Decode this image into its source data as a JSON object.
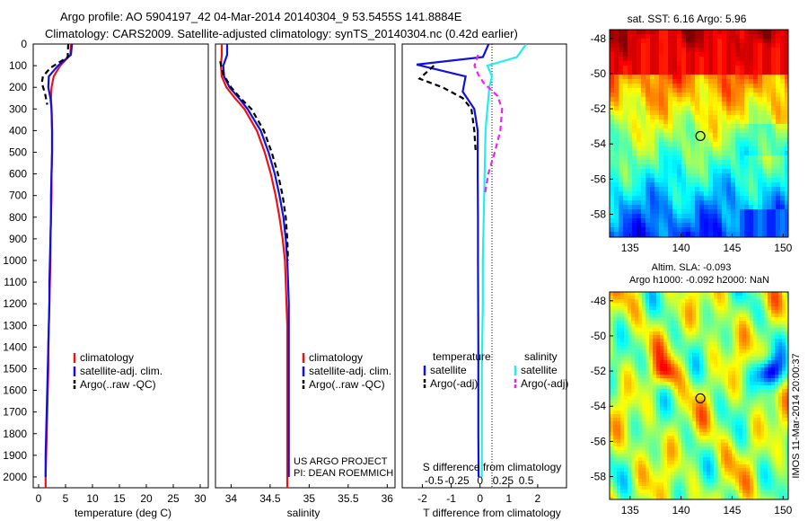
{
  "header": {
    "line1": "Argo profile: AO 5904197_42 04-Mar-2014 20140304_9 53.5455S 141.8884E",
    "line2": "Climatology: CARS2009. Satellite-adjusted climatology: synTS_20140304.nc (0.42d earlier)"
  },
  "footer": {
    "project": "US ARGO PROJECT",
    "pi": "PI: DEAN ROEMMICH",
    "imos": "IMOS 11-Mar-2014 20:00:37"
  },
  "colors": {
    "climatology": "#ee1111",
    "satellite": "#1111dd",
    "argo": "#000000",
    "satellite_salinity": "#22eeee",
    "argo_salinity_adj": "#ee22ee"
  },
  "chart_data": [
    {
      "type": "line",
      "panel": "temperature",
      "xlabel": "temperature (deg C)",
      "ylabel": "",
      "xlim": [
        -1,
        31.5
      ],
      "ylim": [
        2050,
        0
      ],
      "xticks": [
        "0",
        "5",
        "10",
        "15",
        "20",
        "25",
        "30"
      ],
      "yticks": [
        "0",
        "100",
        "200",
        "300",
        "400",
        "500",
        "600",
        "700",
        "800",
        "900",
        "1000",
        "1100",
        "1200",
        "1300",
        "1400",
        "1500",
        "1600",
        "1700",
        "1800",
        "1900",
        "2000"
      ],
      "legend": [
        "climatology",
        "satellite-adj. clim.",
        "Argo(..raw -QC)"
      ],
      "series": [
        {
          "name": "climatology",
          "x": [
            6.0,
            5.9,
            4.0,
            2.8,
            2.4,
            2.3,
            2.4,
            2.5,
            2.5,
            2.4,
            2.4,
            2.3,
            2.2,
            2.2,
            2.1,
            2.0,
            1.9,
            1.8,
            1.8,
            1.7,
            1.6,
            1.5,
            1.4,
            1.3,
            1.3
          ],
          "y": [
            0,
            50,
            100,
            150,
            200,
            250,
            300,
            400,
            500,
            600,
            700,
            800,
            900,
            1000,
            1100,
            1200,
            1300,
            1400,
            1500,
            1600,
            1700,
            1800,
            1900,
            2000,
            2050
          ]
        },
        {
          "name": "satellite-adj. clim.",
          "x": [
            6.2,
            6.0,
            3.6,
            1.9,
            1.8,
            2.2,
            2.4,
            2.5,
            2.5,
            2.4,
            2.3,
            2.3,
            2.2,
            2.1,
            2.0,
            2.0,
            1.9,
            1.8,
            1.7,
            1.6,
            1.5,
            1.4,
            1.3,
            1.3
          ],
          "y": [
            0,
            50,
            100,
            150,
            200,
            250,
            300,
            400,
            500,
            600,
            700,
            800,
            900,
            1000,
            1100,
            1200,
            1300,
            1400,
            1500,
            1600,
            1700,
            1800,
            1900,
            2000
          ]
        },
        {
          "name": "Argo(..raw -QC)",
          "x": [
            5.5,
            5.4,
            2.2,
            0.8,
            0.6,
            1.2,
            1.6
          ],
          "y": [
            0,
            60,
            110,
            150,
            180,
            230,
            280
          ]
        }
      ]
    },
    {
      "type": "line",
      "panel": "salinity",
      "xlabel": "salinity",
      "xlim": [
        33.8,
        36.1
      ],
      "ylim": [
        2050,
        0
      ],
      "xticks": [
        "34",
        "34.5",
        "35",
        "35.5",
        "36"
      ],
      "legend": [
        "climatology",
        "satellite-adj. clim.",
        "Argo(..raw -QC)"
      ],
      "series": [
        {
          "name": "climatology",
          "x": [
            33.88,
            33.88,
            33.87,
            33.88,
            33.94,
            34.05,
            34.17,
            34.33,
            34.43,
            34.51,
            34.57,
            34.62,
            34.66,
            34.69,
            34.7,
            34.71,
            34.72,
            34.72,
            34.72,
            34.72,
            34.72,
            34.72,
            34.72,
            34.72,
            34.72
          ],
          "y": [
            0,
            50,
            100,
            150,
            200,
            250,
            300,
            400,
            500,
            600,
            700,
            800,
            900,
            1000,
            1100,
            1200,
            1300,
            1400,
            1500,
            1600,
            1700,
            1800,
            1900,
            2000,
            2050
          ]
        },
        {
          "name": "satellite-adj. clim.",
          "x": [
            33.95,
            33.95,
            33.9,
            33.91,
            33.98,
            34.1,
            34.21,
            34.38,
            34.48,
            34.56,
            34.62,
            34.67,
            34.7,
            34.72,
            34.73,
            34.74,
            34.74,
            34.74,
            34.74,
            34.74,
            34.74,
            34.74,
            34.74,
            34.74
          ],
          "y": [
            0,
            50,
            100,
            150,
            200,
            250,
            300,
            400,
            500,
            600,
            700,
            800,
            900,
            1000,
            1100,
            1200,
            1300,
            1400,
            1500,
            1600,
            1700,
            1800,
            1900,
            2000
          ]
        },
        {
          "name": "Argo(..raw -QC)",
          "x": [
            33.86,
            33.9,
            34.0,
            34.12,
            34.26,
            34.42,
            34.52,
            34.6,
            34.66,
            34.7,
            34.72,
            34.73
          ],
          "y": [
            80,
            140,
            200,
            250,
            300,
            400,
            500,
            600,
            700,
            800,
            900,
            1000
          ]
        }
      ],
      "annotations": [
        "US ARGO PROJECT",
        "PI: DEAN ROEMMICH"
      ]
    },
    {
      "type": "line",
      "panel": "difference",
      "xlabel": "T difference from climatology",
      "top_label": "S difference from climatology",
      "xlim": [
        -2.7,
        3.0
      ],
      "ylim": [
        2050,
        0
      ],
      "xticks": [
        "-2",
        "-1",
        "0",
        "1",
        "2"
      ],
      "secondary_xticks": [
        "-0.5",
        "-0.25",
        "0",
        "0.25",
        "0.5"
      ],
      "legend": [
        "temperature",
        "satellite",
        "Argo(-adj)",
        "salinity",
        "satellite",
        "Argo(-adj)"
      ],
      "series": [
        {
          "name": "temperature satellite",
          "x": [
            0.3,
            0.1,
            -2.2,
            -0.5,
            -0.6,
            -0.2,
            -0.08,
            -0.08,
            -0.07,
            -0.07,
            -0.06,
            -0.06,
            -0.05
          ],
          "y": [
            0,
            60,
            95,
            150,
            220,
            300,
            400,
            600,
            800,
            1000,
            1400,
            1800,
            2000
          ]
        },
        {
          "name": "temperature Argo(-adj)",
          "x": [
            -1.6,
            -2.1,
            -1.3,
            -0.6,
            -0.3,
            -0.2,
            -0.15
          ],
          "y": [
            100,
            160,
            200,
            250,
            300,
            400,
            500
          ]
        },
        {
          "name": "salinity satellite",
          "x": [
            0.5,
            0.4,
            0.08,
            0.13,
            0.1,
            0.08,
            0.06,
            0.05,
            0.04,
            0.03,
            0.03,
            0.02,
            0.02,
            0.02
          ],
          "y": [
            0,
            60,
            100,
            150,
            200,
            300,
            400,
            600,
            800,
            1000,
            1200,
            1500,
            1800,
            2000
          ]
        },
        {
          "name": "salinity Argo(-adj)",
          "x": [
            -0.02,
            -0.06,
            -0.02,
            0.04,
            0.19,
            0.24,
            0.22,
            0.16,
            0.09,
            0.05
          ],
          "y": [
            50,
            100,
            140,
            180,
            240,
            300,
            400,
            500,
            600,
            700
          ]
        }
      ]
    },
    {
      "type": "heatmap",
      "panel": "sst_map",
      "title": "sat. SST: 6.16 Argo: 5.96",
      "xticks": [
        "135",
        "140",
        "145",
        "150"
      ],
      "yticks": [
        "-48",
        "-50",
        "-52",
        "-54",
        "-56",
        "-58"
      ],
      "xlim": [
        133,
        150.5
      ],
      "ylim": [
        -59.3,
        -47.5
      ],
      "marker": {
        "lon": 141.89,
        "lat": -53.55
      }
    },
    {
      "type": "heatmap",
      "panel": "sla_map",
      "title": "Altim. SLA: -0.093",
      "subtitle": "Argo h1000: -0.092 h2000: NaN",
      "xticks": [
        "135",
        "140",
        "145",
        "150"
      ],
      "yticks": [
        "-48",
        "-50",
        "-52",
        "-54",
        "-56",
        "-58"
      ],
      "xlim": [
        133,
        150.5
      ],
      "ylim": [
        -59.3,
        -47.5
      ],
      "marker": {
        "lon": 141.89,
        "lat": -53.55
      }
    }
  ]
}
